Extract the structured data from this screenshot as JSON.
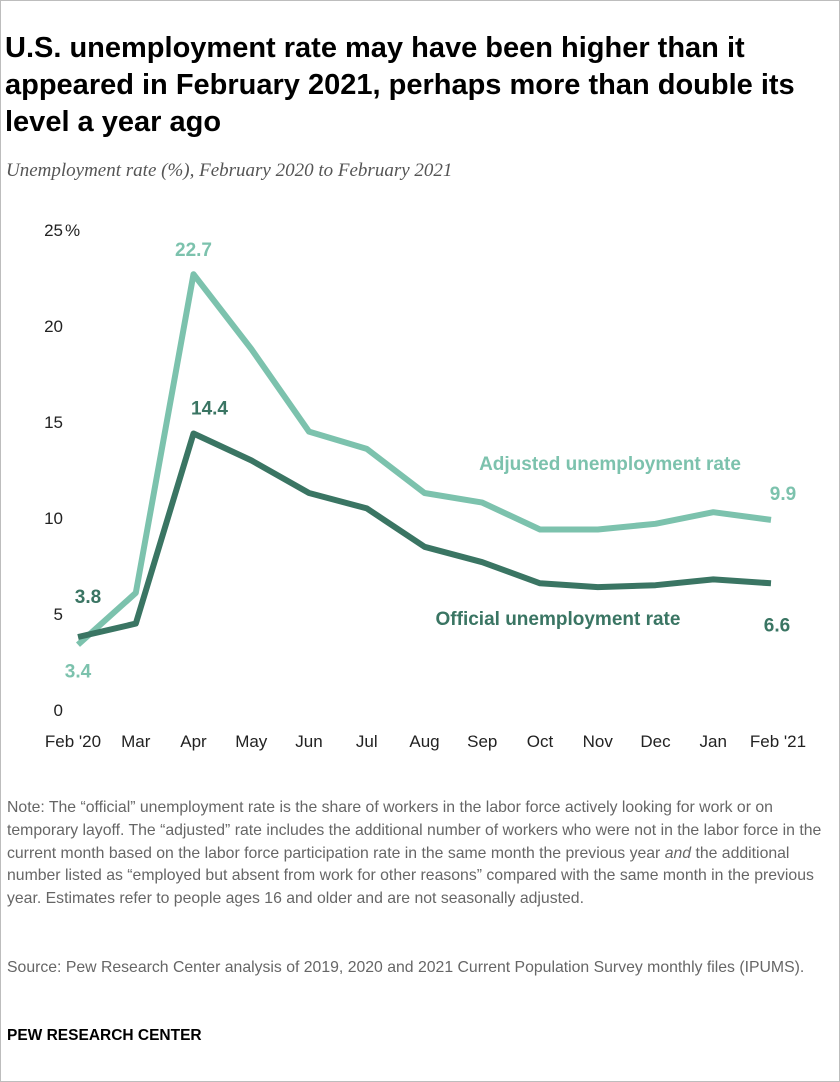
{
  "header": {
    "title": "U.S. unemployment rate may have been higher than it appeared in February 2021, perhaps more than double its level a year ago",
    "subtitle": "Unemployment rate (%), February 2020 to February 2021"
  },
  "footer": {
    "note_prefix": "Note: The “official” unemployment rate is the share of workers in the labor force actively looking for work or on temporary layoff. The “adjusted” rate includes the additional number of workers who were not in the labor force in the current month based on the labor force participation rate in the same month the previous year ",
    "note_emphasis": "and",
    "note_suffix": " the additional number listed as “employed but absent from work for other reasons” compared with the same month in the previous year. Estimates refer to people ages 16 and older and are not seasonally adjusted.",
    "source": "Source: Pew Research Center analysis of 2019, 2020 and 2021 Current Population Survey monthly files (IPUMS).",
    "brand": "PEW RESEARCH CENTER"
  },
  "chart_data": {
    "type": "line",
    "categories": [
      "Feb '20",
      "Mar",
      "Apr",
      "May",
      "Jun",
      "Jul",
      "Aug",
      "Sep",
      "Oct",
      "Nov",
      "Dec",
      "Jan",
      "Feb '21"
    ],
    "y_ticks": [
      "0",
      "5",
      "10",
      "15",
      "20",
      "25"
    ],
    "y_unit": "%",
    "ylim": [
      0,
      25
    ],
    "grid": false,
    "legend": "direct labels on lines",
    "series": [
      {
        "name": "Adjusted unemployment rate",
        "color": "#7cc2ad",
        "values": [
          3.4,
          6.1,
          22.7,
          18.8,
          14.5,
          13.6,
          11.3,
          10.8,
          9.4,
          9.4,
          9.7,
          10.3,
          9.9
        ],
        "labels": {
          "0": "3.4",
          "2": "22.7",
          "12": "9.9"
        }
      },
      {
        "name": "Official unemployment rate",
        "color": "#3a7563",
        "values": [
          3.8,
          4.5,
          14.4,
          13.0,
          11.3,
          10.5,
          8.5,
          7.7,
          6.6,
          6.4,
          6.5,
          6.8,
          6.6
        ],
        "labels": {
          "0": "3.8",
          "2": "14.4",
          "12": "6.6"
        }
      }
    ]
  }
}
